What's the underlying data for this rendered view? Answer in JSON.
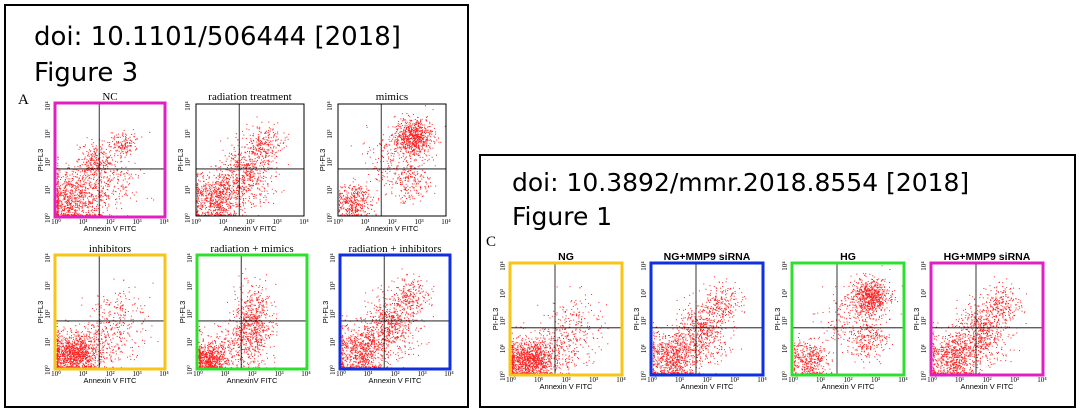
{
  "left_block": {
    "doi": "doi: 10.1101/506444 [2018]",
    "figure": "Figure 3",
    "panel_letter": "A",
    "plots": [
      {
        "title": "NC",
        "border_color": "#e020c0",
        "pattern": "control"
      },
      {
        "title": "radiation treatment",
        "border_color": "",
        "pattern": "radiation"
      },
      {
        "title": "mimics",
        "border_color": "",
        "pattern": "high"
      },
      {
        "title": "inhibitors",
        "border_color": "#f5c518",
        "pattern": "low"
      },
      {
        "title": "radiation + mimics",
        "border_color": "#2ee02e",
        "pattern": "split"
      },
      {
        "title": "radiation + inhibitors",
        "border_color": "#1030e0",
        "pattern": "radiation"
      }
    ]
  },
  "right_block": {
    "doi": "doi: 10.3892/mmr.2018.8554 [2018]",
    "figure": "Figure 1",
    "panel_letter": "C",
    "plots": [
      {
        "title": "NG",
        "border_color": "#f5c518",
        "pattern": "low"
      },
      {
        "title": "NG+MMP9 siRNA",
        "border_color": "#1030e0",
        "pattern": "radiation"
      },
      {
        "title": "HG",
        "border_color": "#2ee02e",
        "pattern": "high"
      },
      {
        "title": "HG+MMP9 siRNA",
        "border_color": "#e020c0",
        "pattern": "radiation"
      }
    ]
  },
  "axes": {
    "xlabel": "Annexin V FITC",
    "xlabel_alt": "AnnexinV FITC",
    "ylabel": "PI-FL3",
    "ticks": [
      "10⁰",
      "10¹",
      "10²",
      "10³",
      "10⁴"
    ]
  },
  "colors": {
    "dots": "#ff2020",
    "frame": "#000000"
  }
}
